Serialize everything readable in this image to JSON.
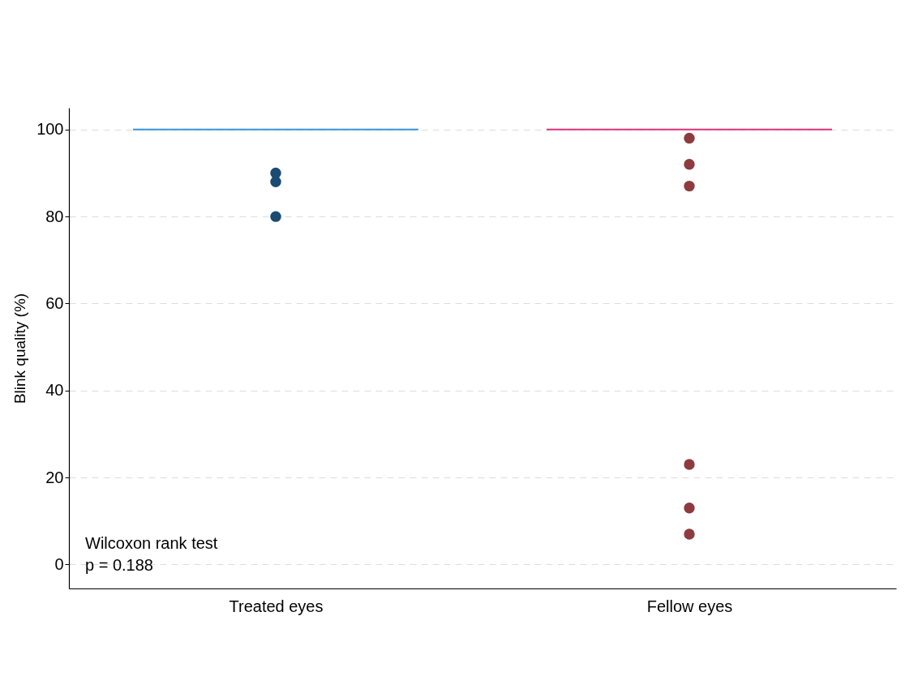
{
  "chart_data": {
    "type": "scatter",
    "ylabel": "Blink quality (%)",
    "categories": [
      "Treated eyes",
      "Fellow eyes"
    ],
    "ylim": [
      -5.5,
      105
    ],
    "yticks": [
      0,
      20,
      40,
      60,
      80,
      100
    ],
    "grid": "y",
    "marker": "circle",
    "annotations": [
      "Wilcoxon rank test",
      "p = 0.188"
    ],
    "ref_lines": [
      {
        "axis": "y",
        "value": 100,
        "color": "#3a93d8"
      },
      {
        "axis": "y",
        "value": 100,
        "color": "#e0307a"
      }
    ],
    "series": [
      {
        "color": "#1b4b72",
        "x": [
          "Treated eyes",
          "Treated eyes",
          "Treated eyes"
        ],
        "values": [
          90,
          88,
          80
        ]
      },
      {
        "color": "#8e3b40",
        "x": [
          "Fellow eyes",
          "Fellow eyes",
          "Fellow eyes",
          "Fellow eyes",
          "Fellow eyes",
          "Fellow eyes"
        ],
        "values": [
          98,
          92,
          87,
          23,
          13,
          7
        ]
      }
    ]
  }
}
